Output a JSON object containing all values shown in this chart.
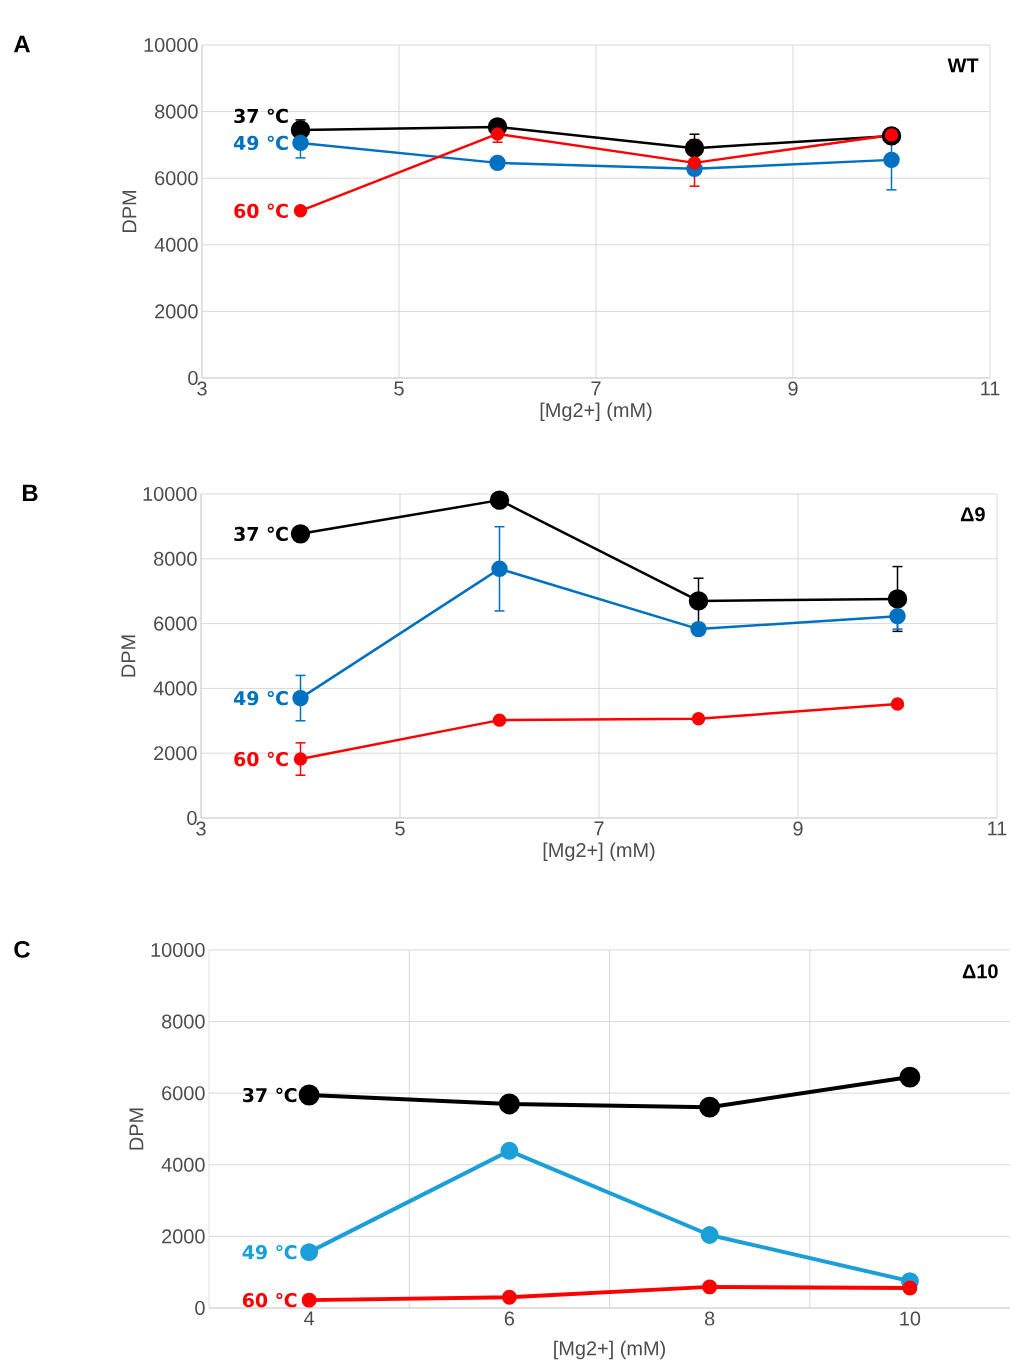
{
  "chart_data": [
    {
      "type": "line",
      "title": "A",
      "annotations": [
        "WT"
      ],
      "xlabel": "[Mg2+] (mM)",
      "ylabel": "DPM",
      "x": [
        4,
        6,
        8,
        10
      ],
      "xlim": [
        3,
        11
      ],
      "xticks": [
        3,
        5,
        7,
        9,
        11
      ],
      "ylim": [
        0,
        10000
      ],
      "yticks": [
        0,
        2000,
        4000,
        6000,
        8000,
        10000
      ],
      "grid": true,
      "marker": "circle",
      "series": [
        {
          "name": "37 ℃",
          "color": "#000000",
          "values": [
            7450,
            7540,
            6900,
            7270
          ],
          "errors": [
            300,
            null,
            420,
            null
          ]
        },
        {
          "name": "49 ℃",
          "color": "#0070c0",
          "values": [
            7060,
            6460,
            6280,
            6550
          ],
          "errors": [
            450,
            null,
            null,
            900
          ]
        },
        {
          "name": "60 ℃",
          "color": "#ff0000",
          "values": [
            5020,
            7330,
            6460,
            7300
          ],
          "errors": [
            null,
            250,
            700,
            null
          ]
        }
      ]
    },
    {
      "type": "line",
      "title": "B",
      "annotations": [
        "Δ9"
      ],
      "xlabel": "[Mg2+] (mM)",
      "ylabel": "DPM",
      "x": [
        4,
        6,
        8,
        10
      ],
      "xlim": [
        3,
        11
      ],
      "xticks": [
        3,
        5,
        7,
        9,
        11
      ],
      "ylim": [
        0,
        10000
      ],
      "yticks": [
        0,
        2000,
        4000,
        6000,
        8000,
        10000
      ],
      "grid": true,
      "marker": "circle",
      "series": [
        {
          "name": "37 ℃",
          "color": "#000000",
          "values": [
            8770,
            9810,
            6700,
            6760
          ],
          "errors": [
            null,
            null,
            700,
            1000
          ]
        },
        {
          "name": "49 ℃",
          "color": "#0070c0",
          "values": [
            3700,
            7690,
            5830,
            6230
          ],
          "errors": [
            700,
            1300,
            null,
            400
          ]
        },
        {
          "name": "60 ℃",
          "color": "#ff0000",
          "values": [
            1820,
            3020,
            3060,
            3520
          ],
          "errors": [
            500,
            null,
            null,
            null
          ]
        }
      ]
    },
    {
      "type": "line",
      "title": "C",
      "annotations": [
        "Δ10"
      ],
      "xlabel": "[Mg2+] (mM)",
      "ylabel": "DPM",
      "categories": [
        "4",
        "6",
        "8",
        "10"
      ],
      "ylim": [
        0,
        10000
      ],
      "yticks": [
        0,
        2000,
        4000,
        6000,
        8000,
        10000
      ],
      "grid": true,
      "marker": "circle",
      "series": [
        {
          "name": "37 ℃",
          "color": "#000000",
          "values": [
            5950,
            5700,
            5610,
            6450
          ]
        },
        {
          "name": "49 ℃",
          "color": "#1b9fd8",
          "values": [
            1560,
            4390,
            2040,
            750
          ]
        },
        {
          "name": "60 ℃",
          "color": "#ff0000",
          "values": [
            220,
            300,
            590,
            560
          ],
          "errors": [
            null,
            null,
            null,
            150
          ]
        }
      ]
    }
  ]
}
